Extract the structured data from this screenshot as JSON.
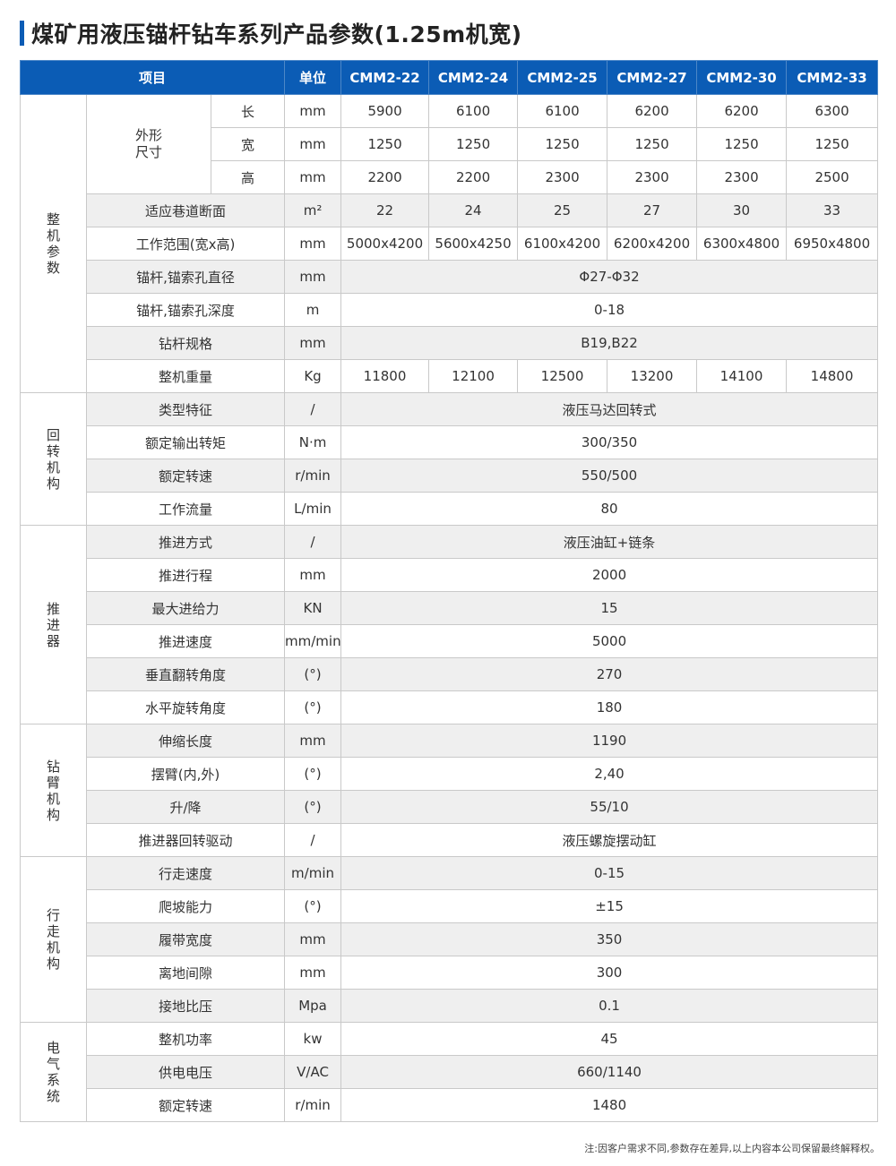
{
  "title": "煤矿用液压锚杆钻车系列产品参数(1.25m机宽)",
  "colors": {
    "accent": "#0b5cb5",
    "row_alt": "#efefef",
    "border": "#c9c9c9"
  },
  "header": {
    "item": "项目",
    "unit": "单位",
    "models": [
      "CMM2-22",
      "CMM2-24",
      "CMM2-25",
      "CMM2-27",
      "CMM2-30",
      "CMM2-33"
    ]
  },
  "groups": [
    {
      "label": "整机参数",
      "rows": [
        {
          "item": "外形尺寸",
          "sub": "长",
          "unit": "mm",
          "values": [
            "5900",
            "6100",
            "6100",
            "6200",
            "6200",
            "6300"
          ]
        },
        {
          "item": "外形尺寸",
          "sub": "宽",
          "unit": "mm",
          "values": [
            "1250",
            "1250",
            "1250",
            "1250",
            "1250",
            "1250"
          ]
        },
        {
          "item": "外形尺寸",
          "sub": "高",
          "unit": "mm",
          "values": [
            "2200",
            "2200",
            "2300",
            "2300",
            "2300",
            "2500"
          ]
        },
        {
          "item": "适应巷道断面",
          "unit": "m²",
          "values": [
            "22",
            "24",
            "25",
            "27",
            "30",
            "33"
          ]
        },
        {
          "item": "工作范围(宽x高)",
          "unit": "mm",
          "values": [
            "5000x4200",
            "5600x4250",
            "6100x4200",
            "6200x4200",
            "6300x4800",
            "6950x4800"
          ]
        },
        {
          "item": "锚杆,锚索孔直径",
          "unit": "mm",
          "value": "Φ27-Φ32"
        },
        {
          "item": "锚杆,锚索孔深度",
          "unit": "m",
          "value": "0-18"
        },
        {
          "item": "钻杆规格",
          "unit": "mm",
          "value": "B19,B22"
        },
        {
          "item": "整机重量",
          "unit": "Kg",
          "values": [
            "11800",
            "12100",
            "12500",
            "13200",
            "14100",
            "14800"
          ]
        }
      ]
    },
    {
      "label": "回转机构",
      "rows": [
        {
          "item": "类型特征",
          "unit": "/",
          "value": "液压马达回转式"
        },
        {
          "item": "额定输出转矩",
          "unit": "N·m",
          "value": "300/350"
        },
        {
          "item": "额定转速",
          "unit": "r/min",
          "value": "550/500"
        },
        {
          "item": "工作流量",
          "unit": "L/min",
          "value": "80"
        }
      ]
    },
    {
      "label": "推进器",
      "rows": [
        {
          "item": "推进方式",
          "unit": "/",
          "value": "液压油缸+链条"
        },
        {
          "item": "推进行程",
          "unit": "mm",
          "value": "2000"
        },
        {
          "item": "最大进给力",
          "unit": "KN",
          "value": "15"
        },
        {
          "item": "推进速度",
          "unit": "mm/min",
          "value": "5000"
        },
        {
          "item": "垂直翻转角度",
          "unit": "(°)",
          "value": "270"
        },
        {
          "item": "水平旋转角度",
          "unit": "(°)",
          "value": "180"
        }
      ]
    },
    {
      "label": "钻臂机构",
      "rows": [
        {
          "item": "伸缩长度",
          "unit": "mm",
          "value": "1190"
        },
        {
          "item": "摆臂(内,外)",
          "unit": "(°)",
          "value": "2,40"
        },
        {
          "item": "升/降",
          "unit": "(°)",
          "value": "55/10"
        },
        {
          "item": "推进器回转驱动",
          "unit": "/",
          "value": "液压螺旋摆动缸"
        }
      ]
    },
    {
      "label": "行走机构",
      "rows": [
        {
          "item": "行走速度",
          "unit": "m/min",
          "value": "0-15"
        },
        {
          "item": "爬坡能力",
          "unit": "(°)",
          "value": "±15"
        },
        {
          "item": "履带宽度",
          "unit": "mm",
          "value": "350"
        },
        {
          "item": "离地间隙",
          "unit": "mm",
          "value": "300"
        },
        {
          "item": "接地比压",
          "unit": "Mpa",
          "value": "0.1"
        }
      ]
    },
    {
      "label": "电气系统",
      "rows": [
        {
          "item": "整机功率",
          "unit": "kw",
          "value": "45"
        },
        {
          "item": "供电电压",
          "unit": "V/AC",
          "value": "660/1140"
        },
        {
          "item": "额定转速",
          "unit": "r/min",
          "value": "1480"
        }
      ]
    }
  ],
  "note": "注:因客户需求不同,参数存在差异,以上内容本公司保留最终解释权。"
}
